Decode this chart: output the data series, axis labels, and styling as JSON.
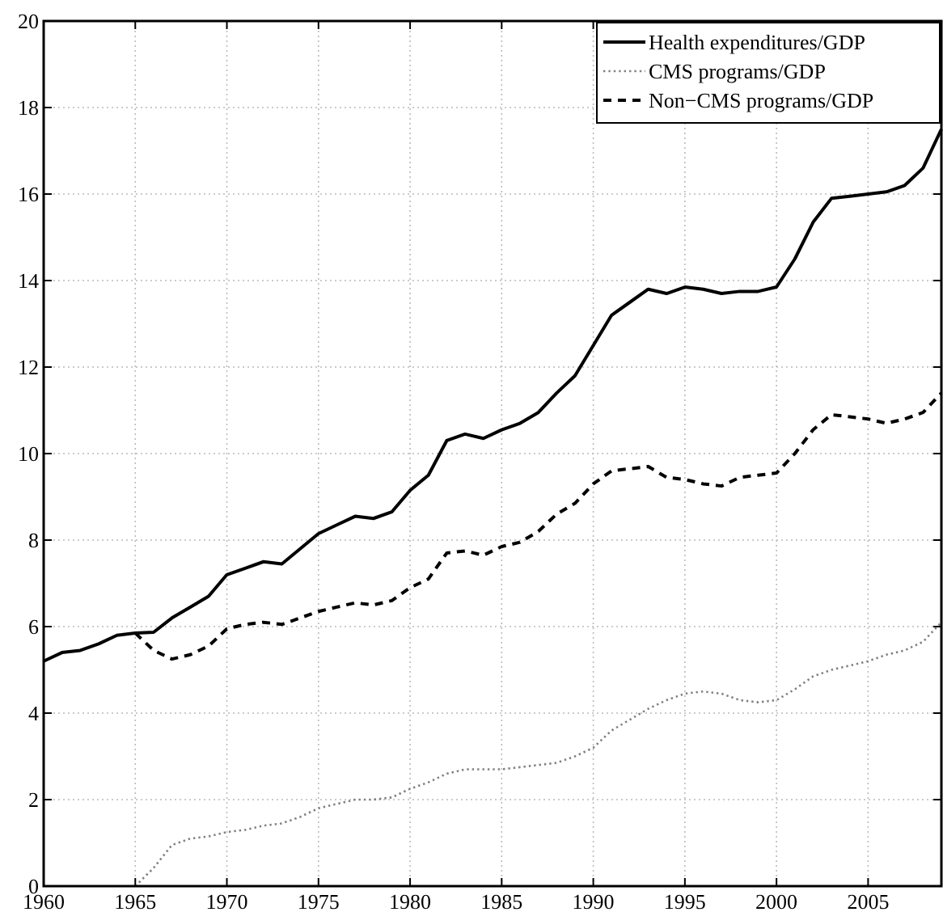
{
  "chart_data": {
    "type": "line",
    "xlim": [
      1960,
      2009
    ],
    "ylim": [
      0,
      20
    ],
    "xticks": [
      1960,
      1965,
      1970,
      1975,
      1980,
      1985,
      1990,
      1995,
      2000,
      2005
    ],
    "yticks": [
      0,
      2,
      4,
      6,
      8,
      10,
      12,
      14,
      16,
      18,
      20
    ],
    "grid": true,
    "legend": "top right",
    "marker": "none",
    "series": [
      {
        "name": "Health expenditures/GDP",
        "color": "#000000",
        "line_style": "solid",
        "x": [
          1960,
          1961,
          1962,
          1963,
          1964,
          1965,
          1966,
          1967,
          1968,
          1969,
          1970,
          1971,
          1972,
          1973,
          1974,
          1975,
          1976,
          1977,
          1978,
          1979,
          1980,
          1981,
          1982,
          1983,
          1984,
          1985,
          1986,
          1987,
          1988,
          1989,
          1990,
          1991,
          1992,
          1993,
          1994,
          1995,
          1996,
          1997,
          1998,
          1999,
          2000,
          2001,
          2002,
          2003,
          2004,
          2005,
          2006,
          2007,
          2008,
          2009
        ],
        "values": [
          5.2,
          5.4,
          5.45,
          5.6,
          5.8,
          5.85,
          5.87,
          6.2,
          6.45,
          6.7,
          7.2,
          7.35,
          7.5,
          7.45,
          7.8,
          8.15,
          8.35,
          8.55,
          8.5,
          8.65,
          9.15,
          9.5,
          10.3,
          10.45,
          10.35,
          10.55,
          10.7,
          10.95,
          11.4,
          11.8,
          12.5,
          13.2,
          13.5,
          13.8,
          13.7,
          13.85,
          13.8,
          13.7,
          13.75,
          13.75,
          13.85,
          14.5,
          15.35,
          15.9,
          15.95,
          16.0,
          16.05,
          16.2,
          16.6,
          17.5
        ]
      },
      {
        "name": "CMS programs/GDP",
        "color": "#808080",
        "line_style": "dotted",
        "x": [
          1965,
          1966,
          1967,
          1968,
          1969,
          1970,
          1971,
          1972,
          1973,
          1974,
          1975,
          1976,
          1977,
          1978,
          1979,
          1980,
          1981,
          1982,
          1983,
          1984,
          1985,
          1986,
          1987,
          1988,
          1989,
          1990,
          1991,
          1992,
          1993,
          1994,
          1995,
          1996,
          1997,
          1998,
          1999,
          2000,
          2001,
          2002,
          2003,
          2004,
          2005,
          2006,
          2007,
          2008,
          2009
        ],
        "values": [
          0,
          0.42,
          0.95,
          1.1,
          1.15,
          1.25,
          1.3,
          1.4,
          1.45,
          1.6,
          1.8,
          1.9,
          2.0,
          2.0,
          2.05,
          2.25,
          2.4,
          2.6,
          2.7,
          2.7,
          2.7,
          2.75,
          2.8,
          2.85,
          3.0,
          3.2,
          3.6,
          3.85,
          4.1,
          4.3,
          4.45,
          4.5,
          4.45,
          4.3,
          4.25,
          4.3,
          4.55,
          4.85,
          5.0,
          5.1,
          5.2,
          5.35,
          5.45,
          5.65,
          6.1
        ]
      },
      {
        "name": "Non−CMS programs/GDP",
        "color": "#000000",
        "line_style": "dashed",
        "x": [
          1965,
          1966,
          1967,
          1968,
          1969,
          1970,
          1971,
          1972,
          1973,
          1974,
          1975,
          1976,
          1977,
          1978,
          1979,
          1980,
          1981,
          1982,
          1983,
          1984,
          1985,
          1986,
          1987,
          1988,
          1989,
          1990,
          1991,
          1992,
          1993,
          1994,
          1995,
          1996,
          1997,
          1998,
          1999,
          2000,
          2001,
          2002,
          2003,
          2004,
          2005,
          2006,
          2007,
          2008,
          2009
        ],
        "values": [
          5.85,
          5.45,
          5.25,
          5.35,
          5.55,
          5.95,
          6.05,
          6.1,
          6.05,
          6.2,
          6.35,
          6.45,
          6.55,
          6.5,
          6.6,
          6.9,
          7.1,
          7.7,
          7.75,
          7.65,
          7.85,
          7.95,
          8.2,
          8.6,
          8.85,
          9.3,
          9.6,
          9.65,
          9.7,
          9.45,
          9.4,
          9.3,
          9.25,
          9.45,
          9.5,
          9.55,
          10.0,
          10.55,
          10.9,
          10.85,
          10.8,
          10.7,
          10.8,
          10.95,
          11.4
        ]
      }
    ]
  }
}
